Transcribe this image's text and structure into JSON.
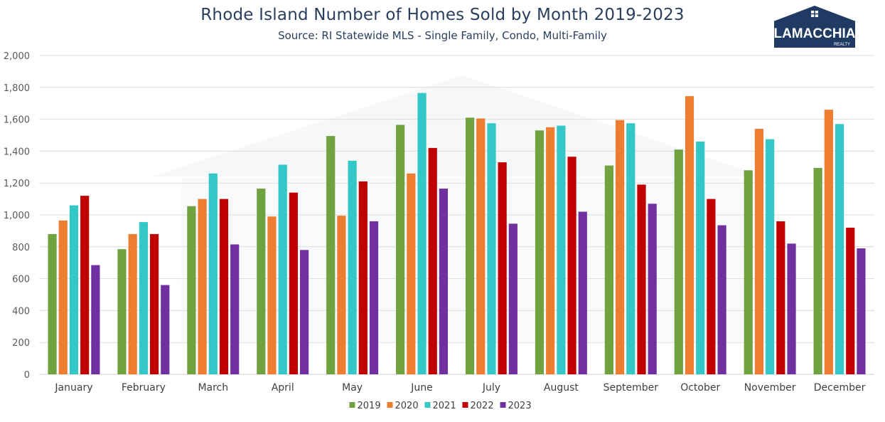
{
  "title": "Rhode Island Number of Homes Sold by Month 2019-2023",
  "subtitle": "Source: RI Statewide MLS - Single Family, Condo, Multi-Family",
  "logo": {
    "name": "LAMACCHIA",
    "tagline": "REALTY"
  },
  "chart_data": {
    "type": "bar",
    "categories": [
      "January",
      "February",
      "March",
      "April",
      "May",
      "June",
      "July",
      "August",
      "September",
      "October",
      "November",
      "December"
    ],
    "series": [
      {
        "name": "2019",
        "color": "#70a33f",
        "values": [
          880,
          785,
          1055,
          1165,
          1495,
          1565,
          1610,
          1530,
          1310,
          1410,
          1280,
          1295
        ]
      },
      {
        "name": "2020",
        "color": "#ed7d31",
        "values": [
          965,
          880,
          1100,
          990,
          995,
          1260,
          1605,
          1550,
          1595,
          1745,
          1540,
          1660
        ]
      },
      {
        "name": "2021",
        "color": "#33c7c7",
        "values": [
          1060,
          955,
          1260,
          1315,
          1340,
          1765,
          1575,
          1560,
          1575,
          1460,
          1475,
          1570
        ]
      },
      {
        "name": "2022",
        "color": "#c00000",
        "values": [
          1120,
          880,
          1100,
          1140,
          1210,
          1420,
          1330,
          1365,
          1190,
          1100,
          960,
          920
        ]
      },
      {
        "name": "2023",
        "color": "#7030a0",
        "values": [
          685,
          560,
          815,
          780,
          960,
          1165,
          945,
          1020,
          1070,
          935,
          820,
          790
        ]
      }
    ],
    "ylim": [
      0,
      2000
    ],
    "yticks": [
      "0",
      "200",
      "400",
      "600",
      "800",
      "1,000",
      "1,200",
      "1,400",
      "1,600",
      "1,800",
      "2,000"
    ],
    "grid": true,
    "legend": "bottom"
  }
}
